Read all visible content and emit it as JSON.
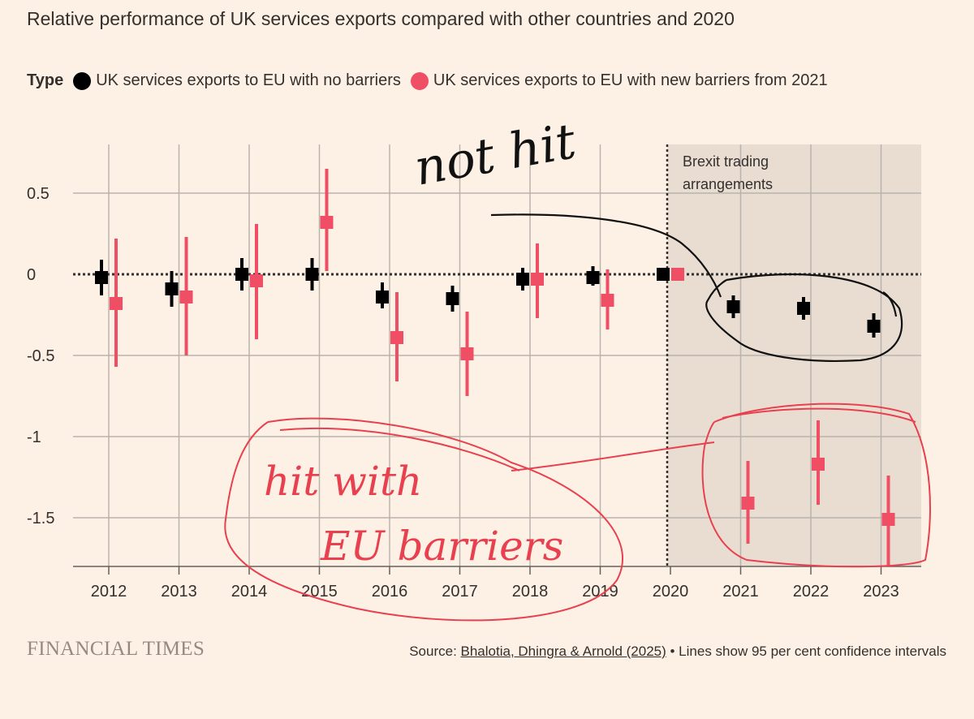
{
  "title": "Relative performance of UK services exports compared with other countries and 2020",
  "legend": {
    "type_label": "Type",
    "items": [
      {
        "label": "UK services exports to EU with no barriers",
        "color": "#000000"
      },
      {
        "label": "UK services exports to EU with new barriers from 2021",
        "color": "#f04e64"
      }
    ]
  },
  "annotation": {
    "shaded_label_line1": "Brexit trading",
    "shaded_label_line2": "arrangements"
  },
  "handwriting": {
    "black_note": "not hit",
    "red_note_line1": "hit with",
    "red_note_line2": "EU barriers"
  },
  "footer": {
    "logo": "FINANCIAL TIMES",
    "source_prefix": "Source: ",
    "source_link": "Bhalotia, Dhingra & Arnold (2025)",
    "source_suffix": " • Lines show 95 per cent confidence intervals"
  },
  "colors": {
    "background": "#fdf1e5",
    "shaded": "#e9ddd2",
    "grid": "#b9b3ad",
    "black_series": "#000000",
    "red_series": "#f04e64",
    "red_ink": "#e8404f"
  },
  "chart_data": {
    "type": "scatter",
    "x": [
      "2012",
      "2013",
      "2014",
      "2015",
      "2016",
      "2017",
      "2018",
      "2019",
      "2020",
      "2021",
      "2022",
      "2023"
    ],
    "ylim": [
      -1.8,
      0.8
    ],
    "yticks": [
      0.5,
      0,
      -0.5,
      -1,
      -1.5
    ],
    "ytick_labels": [
      "0.5",
      "0",
      "-0.5",
      "-1",
      "-1.5"
    ],
    "shaded_from": "2020",
    "grid": true,
    "series": [
      {
        "name": "UK services exports to EU with no barriers",
        "color": "#000000",
        "values": [
          -0.02,
          -0.09,
          0.0,
          0.0,
          -0.14,
          -0.15,
          -0.03,
          -0.02,
          0.0,
          -0.2,
          -0.21,
          -0.32
        ],
        "ci_low": [
          -0.13,
          -0.2,
          -0.1,
          -0.1,
          -0.21,
          -0.23,
          -0.1,
          -0.07,
          0.0,
          -0.27,
          -0.28,
          -0.39
        ],
        "ci_high": [
          0.09,
          0.02,
          0.1,
          0.1,
          -0.05,
          -0.07,
          0.04,
          0.05,
          0.0,
          -0.13,
          -0.14,
          -0.24
        ]
      },
      {
        "name": "UK services exports to EU with new barriers from 2021",
        "color": "#f04e64",
        "values": [
          -0.18,
          -0.14,
          -0.04,
          0.32,
          -0.39,
          -0.49,
          -0.03,
          -0.16,
          0.0,
          -1.41,
          -1.17,
          -1.51
        ],
        "ci_low": [
          -0.57,
          -0.5,
          -0.4,
          0.02,
          -0.66,
          -0.75,
          -0.27,
          -0.34,
          0.0,
          -1.66,
          -1.42,
          -1.8
        ],
        "ci_high": [
          0.22,
          0.23,
          0.31,
          0.65,
          -0.11,
          -0.23,
          0.19,
          0.03,
          0.0,
          -1.15,
          -0.9,
          -1.24
        ]
      }
    ]
  }
}
